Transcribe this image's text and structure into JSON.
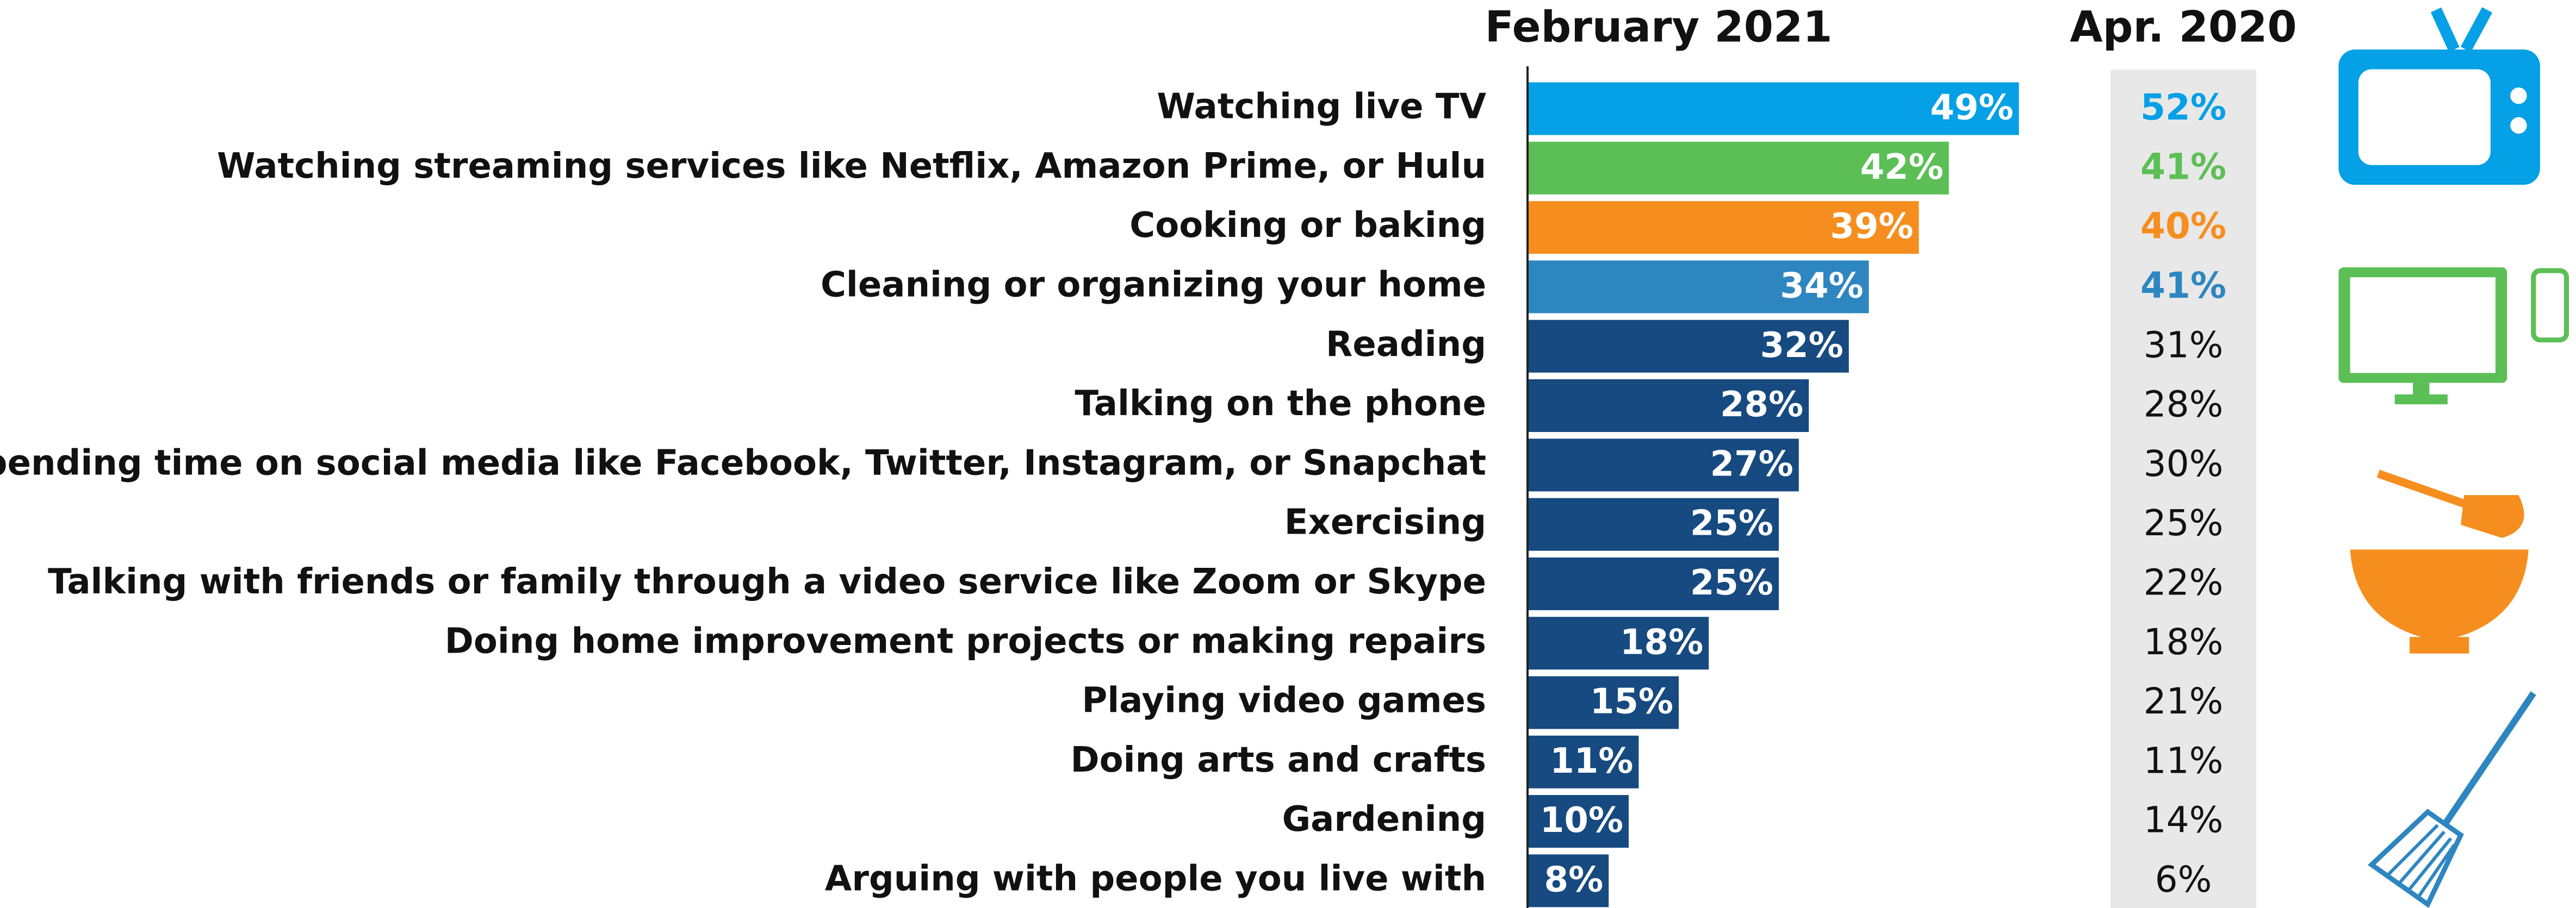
{
  "chart_data": {
    "type": "bar",
    "categories": [
      "Watching live TV",
      "Watching streaming services like Netflix, Amazon Prime, or Hulu",
      "Cooking or baking",
      "Cleaning or organizing your home",
      "Reading",
      "Talking on the phone",
      "Spending time on social media like Facebook, Twitter, Instagram, or Snapchat",
      "Exercising",
      "Talking with friends or family through a video service like Zoom or Skype",
      "Doing home improvement projects or making repairs",
      "Playing video games",
      "Doing arts and crafts",
      "Gardening",
      "Arguing with people you live with"
    ],
    "series": [
      {
        "name": "February 2021",
        "values": [
          49,
          42,
          39,
          34,
          32,
          28,
          27,
          25,
          25,
          18,
          15,
          11,
          10,
          8
        ],
        "value_labels": [
          "49%",
          "42%",
          "39%",
          "34%",
          "32%",
          "28%",
          "27%",
          "25%",
          "25%",
          "18%",
          "15%",
          "11%",
          "10%",
          "8%"
        ],
        "colors": [
          "#05a0e6",
          "#5cbf56",
          "#f68e1f",
          "#2e86c1",
          "#164a80",
          "#164a80",
          "#164a80",
          "#164a80",
          "#164a80",
          "#164a80",
          "#164a80",
          "#164a80",
          "#164a80",
          "#164a80"
        ]
      },
      {
        "name": "Apr. 2020",
        "values": [
          52,
          41,
          40,
          41,
          31,
          28,
          30,
          25,
          22,
          18,
          21,
          11,
          14,
          6
        ],
        "value_labels": [
          "52%",
          "41%",
          "40%",
          "41%",
          "31%",
          "28%",
          "30%",
          "25%",
          "22%",
          "18%",
          "21%",
          "11%",
          "14%",
          "6%"
        ],
        "colors": [
          "#05a0e6",
          "#5cbf56",
          "#f68e1f",
          "#2e86c1",
          "#111111",
          "#111111",
          "#111111",
          "#111111",
          "#111111",
          "#111111",
          "#111111",
          "#111111",
          "#111111",
          "#111111"
        ]
      }
    ]
  }
}
